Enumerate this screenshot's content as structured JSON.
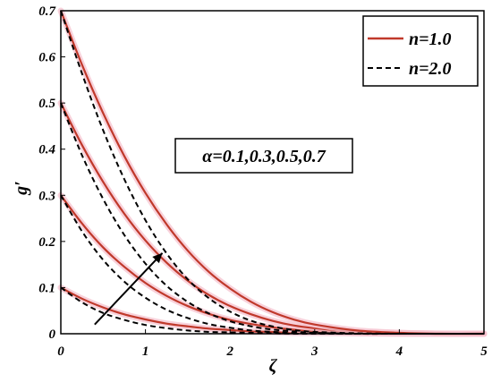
{
  "chart_data": {
    "type": "line",
    "xlabel": "ζ",
    "ylabel": "g′",
    "xlim": [
      0,
      5
    ],
    "ylim": [
      0,
      0.7
    ],
    "xticks": [
      "0",
      "1",
      "2",
      "3",
      "4",
      "5"
    ],
    "yticks": [
      "0",
      "0.1",
      "0.2",
      "0.3",
      "0.4",
      "0.5",
      "0.6",
      "0.7"
    ],
    "grid": false,
    "legend_position": "top-right",
    "legend": [
      {
        "label": "n=1.0",
        "style": "solid",
        "color": "#c0392b"
      },
      {
        "label": "n=2.0",
        "style": "dashed",
        "color": "#000000"
      }
    ],
    "annotation": "α=0.1,0.3,0.5,0.7",
    "arrow": {
      "from": [
        0.4,
        0.02
      ],
      "to": [
        1.2,
        0.175
      ]
    },
    "x": [
      0,
      0.25,
      0.5,
      0.75,
      1,
      1.25,
      1.5,
      1.75,
      2,
      2.25,
      2.5,
      2.75,
      3,
      3.5,
      4,
      4.5,
      5
    ],
    "series": [
      {
        "group": "n=1.0",
        "alpha": 0.1,
        "values": [
          0.1,
          0.076,
          0.057,
          0.042,
          0.031,
          0.022,
          0.016,
          0.011,
          0.008,
          0.005,
          0.004,
          0.002,
          0.002,
          0.001,
          0.0,
          0.0,
          0.0
        ]
      },
      {
        "group": "n=1.0",
        "alpha": 0.3,
        "values": [
          0.3,
          0.239,
          0.187,
          0.145,
          0.11,
          0.082,
          0.06,
          0.043,
          0.03,
          0.021,
          0.014,
          0.009,
          0.006,
          0.002,
          0.001,
          0.0,
          0.0
        ]
      },
      {
        "group": "n=1.0",
        "alpha": 0.5,
        "values": [
          0.5,
          0.409,
          0.329,
          0.26,
          0.202,
          0.154,
          0.115,
          0.084,
          0.06,
          0.042,
          0.028,
          0.018,
          0.012,
          0.004,
          0.001,
          0.0,
          0.0
        ]
      },
      {
        "group": "n=1.0",
        "alpha": 0.7,
        "values": [
          0.7,
          0.583,
          0.478,
          0.385,
          0.305,
          0.237,
          0.18,
          0.134,
          0.098,
          0.069,
          0.047,
          0.031,
          0.02,
          0.007,
          0.002,
          0.0,
          0.0
        ]
      },
      {
        "group": "n=2.0",
        "alpha": 0.1,
        "values": [
          0.1,
          0.068,
          0.045,
          0.03,
          0.019,
          0.012,
          0.007,
          0.004,
          0.003,
          0.002,
          0.001,
          0.0,
          0.0,
          0.0,
          0.0,
          0.0,
          0.0
        ]
      },
      {
        "group": "n=2.0",
        "alpha": 0.3,
        "values": [
          0.3,
          0.222,
          0.16,
          0.113,
          0.078,
          0.052,
          0.034,
          0.021,
          0.013,
          0.007,
          0.004,
          0.002,
          0.001,
          0.0,
          0.0,
          0.0,
          0.0
        ]
      },
      {
        "group": "n=2.0",
        "alpha": 0.5,
        "values": [
          0.5,
          0.387,
          0.292,
          0.214,
          0.152,
          0.104,
          0.069,
          0.044,
          0.027,
          0.016,
          0.009,
          0.005,
          0.002,
          0.0,
          0.0,
          0.0,
          0.0
        ]
      },
      {
        "group": "n=2.0",
        "alpha": 0.7,
        "values": [
          0.7,
          0.564,
          0.441,
          0.335,
          0.246,
          0.174,
          0.118,
          0.077,
          0.048,
          0.028,
          0.016,
          0.008,
          0.004,
          0.001,
          0.0,
          0.0,
          0.0
        ]
      }
    ]
  }
}
